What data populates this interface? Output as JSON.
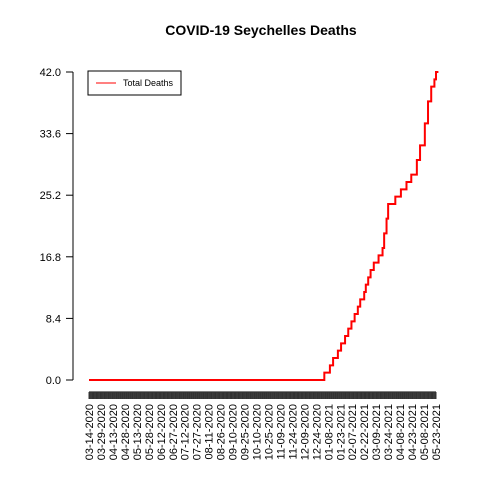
{
  "chart_data": {
    "type": "line",
    "title": "COVID-19 Seychelles Deaths",
    "xlabel": "",
    "ylabel": "",
    "ylim": [
      0,
      42
    ],
    "yticks": [
      "0.0",
      "8.4",
      "16.8",
      "25.2",
      "33.6",
      "42.0"
    ],
    "xticks": [
      "03-14-2020",
      "03-29-2020",
      "04-13-2020",
      "04-28-2020",
      "05-13-2020",
      "05-28-2020",
      "06-12-2020",
      "06-27-2020",
      "07-12-2020",
      "07-27-2020",
      "08-11-2020",
      "08-26-2020",
      "09-10-2020",
      "09-25-2020",
      "10-10-2020",
      "10-25-2020",
      "11-09-2020",
      "11-24-2020",
      "12-09-2020",
      "12-24-2020",
      "01-08-2021",
      "01-23-2021",
      "02-07-2021",
      "02-22-2021",
      "03-09-2021",
      "03-24-2021",
      "04-08-2021",
      "04-23-2021",
      "05-08-2021",
      "05-23-2021"
    ],
    "legend": {
      "position": "top-left",
      "entries": [
        "Total Deaths"
      ]
    },
    "series_color": "#ff0000",
    "grid": false,
    "series": [
      {
        "name": "Total Deaths",
        "x": [
          "03-14-2020",
          "12-31-2020",
          "01-03-2021",
          "01-10-2021",
          "01-14-2021",
          "01-20-2021",
          "01-24-2021",
          "01-29-2021",
          "02-02-2021",
          "02-06-2021",
          "02-10-2021",
          "02-14-2021",
          "02-17-2021",
          "02-22-2021",
          "02-24-2021",
          "02-27-2021",
          "03-02-2021",
          "03-06-2021",
          "03-10-2021",
          "03-12-2021",
          "03-17-2021",
          "03-19-2021",
          "03-22-2021",
          "03-24-2021",
          "04-02-2021",
          "04-09-2021",
          "04-16-2021",
          "04-22-2021",
          "04-29-2021",
          "05-03-2021",
          "05-09-2021",
          "05-13-2021",
          "05-17-2021",
          "05-21-2021",
          "05-23-2021",
          "05-26-2021"
        ],
        "values": [
          0,
          0,
          1,
          2,
          3,
          4,
          5,
          6,
          7,
          8,
          9,
          10,
          11,
          12,
          13,
          14,
          15,
          16,
          16,
          17,
          18,
          20,
          22,
          24,
          25,
          26,
          27,
          28,
          30,
          32,
          35,
          38,
          40,
          41,
          42,
          42
        ]
      }
    ]
  }
}
